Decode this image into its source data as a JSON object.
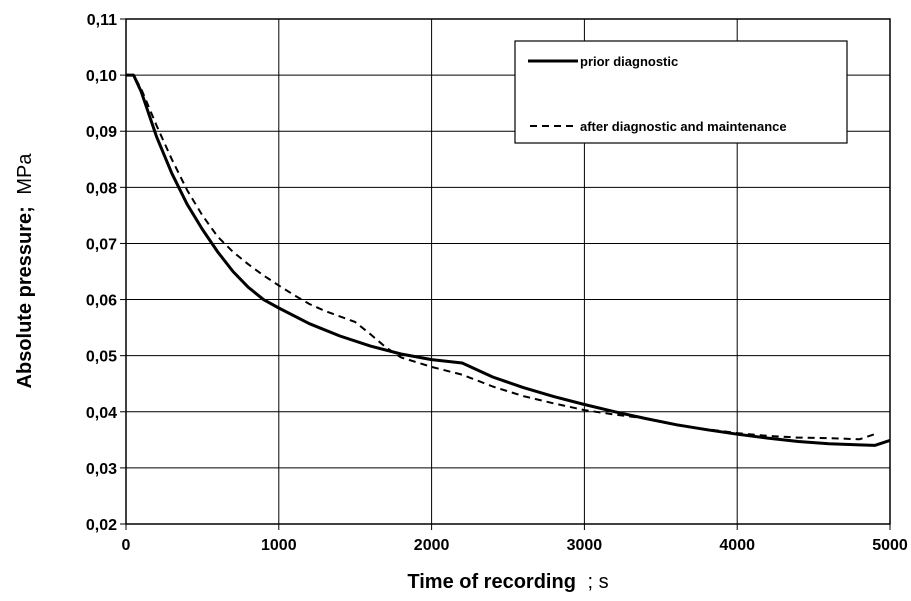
{
  "chart_data": {
    "type": "line",
    "xlabel": "Time of recording ; s",
    "xlabel_main": "Time of recording",
    "xlabel_unit": "; s",
    "ylabel": "Absolute pressure; MPa",
    "ylabel_main": "Absolute pressure;",
    "ylabel_unit": "MPa",
    "xlim": [
      0,
      5000
    ],
    "ylim": [
      0.02,
      0.11
    ],
    "x_ticks": [
      0,
      1000,
      2000,
      3000,
      4000,
      5000
    ],
    "x_tick_labels": [
      "0",
      "1000",
      "2000",
      "3000",
      "4000",
      "5000"
    ],
    "y_ticks": [
      0.02,
      0.03,
      0.04,
      0.05,
      0.06,
      0.07,
      0.08,
      0.09,
      0.1,
      0.11
    ],
    "y_tick_labels": [
      "0,02",
      "0,03",
      "0,04",
      "0,05",
      "0,06",
      "0,07",
      "0,08",
      "0,09",
      "0,10",
      "0,11"
    ],
    "grid": true,
    "legend_position": "top-right",
    "series": [
      {
        "name": "prior diagnostic",
        "style": "solid",
        "color": "#000000",
        "x": [
          0,
          50,
          100,
          200,
          300,
          400,
          500,
          600,
          700,
          800,
          900,
          1000,
          1200,
          1400,
          1600,
          1800,
          2000,
          2200,
          2400,
          2600,
          2800,
          3000,
          3200,
          3400,
          3600,
          3800,
          4000,
          4200,
          4400,
          4600,
          4800,
          4900,
          5000
        ],
        "y": [
          0.1,
          0.1,
          0.097,
          0.089,
          0.0825,
          0.077,
          0.0725,
          0.0685,
          0.065,
          0.0622,
          0.06,
          0.0585,
          0.0557,
          0.0535,
          0.0517,
          0.0503,
          0.0493,
          0.0487,
          0.0462,
          0.0443,
          0.0427,
          0.0413,
          0.04,
          0.0388,
          0.0377,
          0.0368,
          0.036,
          0.0353,
          0.0347,
          0.0343,
          0.0341,
          0.034,
          0.0349
        ]
      },
      {
        "name": "after diagnostic and maintenance",
        "style": "dashed",
        "color": "#000000",
        "x": [
          0,
          50,
          100,
          200,
          300,
          400,
          500,
          600,
          700,
          800,
          900,
          1000,
          1100,
          1200,
          1300,
          1400,
          1500,
          1600,
          1700,
          1800,
          2000,
          2200,
          2400,
          2600,
          2800,
          3000,
          3200,
          3400,
          3600,
          3800,
          4000,
          4200,
          4400,
          4600,
          4800,
          4900
        ],
        "y": [
          0.1,
          0.1,
          0.0975,
          0.091,
          0.085,
          0.0795,
          0.075,
          0.0712,
          0.0685,
          0.0663,
          0.0643,
          0.0625,
          0.0608,
          0.0592,
          0.058,
          0.057,
          0.056,
          0.0538,
          0.0515,
          0.0497,
          0.048,
          0.0466,
          0.0445,
          0.0428,
          0.0415,
          0.0403,
          0.0395,
          0.0388,
          0.0376,
          0.0369,
          0.0362,
          0.0357,
          0.0354,
          0.0353,
          0.0351,
          0.036
        ]
      }
    ]
  }
}
